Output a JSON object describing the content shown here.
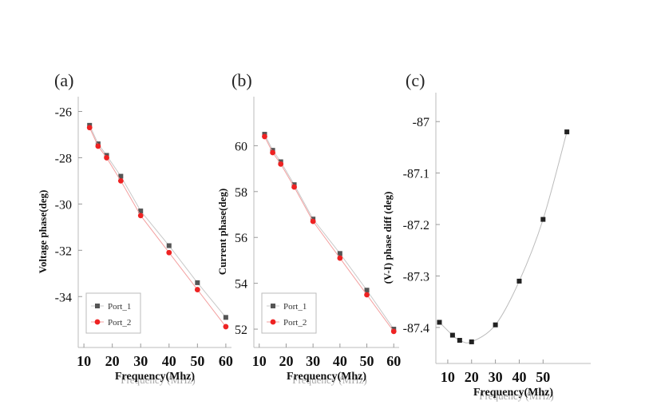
{
  "chart_data": [
    {
      "panel_label": "(a)",
      "type": "line",
      "ylabel": "Voltage phase(deg)",
      "xlabel": "Frequency(Mhz)",
      "xlabel_shadow": "Frequency (MHz)",
      "xlim": [
        8,
        62
      ],
      "ylim": [
        -36.2,
        -25.5
      ],
      "x_ticks": [
        10,
        20,
        30,
        40,
        50,
        60
      ],
      "y_ticks": [
        -26,
        -28,
        -30,
        -32,
        -34
      ],
      "legend_position": "bottom-left",
      "series": [
        {
          "name": "Port_1",
          "color": "#555555",
          "marker": "square",
          "x": [
            12,
            15,
            18,
            23,
            30,
            40,
            50,
            60
          ],
          "y": [
            -26.6,
            -27.4,
            -27.9,
            -28.8,
            -30.3,
            -31.8,
            -33.4,
            -34.9
          ]
        },
        {
          "name": "Port_2",
          "color": "#ee2222",
          "marker": "circle",
          "x": [
            12,
            15,
            18,
            23,
            30,
            40,
            50,
            60
          ],
          "y": [
            -26.7,
            -27.5,
            -28.0,
            -29.0,
            -30.5,
            -32.1,
            -33.7,
            -35.3
          ]
        }
      ]
    },
    {
      "panel_label": "(b)",
      "type": "line",
      "ylabel": "Current  phase(deg)",
      "xlabel": "Frequency(Mhz)",
      "xlabel_shadow": "Frequency (MHz)",
      "xlim": [
        8,
        62
      ],
      "ylim": [
        51.2,
        62.0
      ],
      "x_ticks": [
        10,
        20,
        30,
        40,
        50,
        60
      ],
      "y_ticks": [
        60,
        58,
        56,
        54,
        52
      ],
      "legend_position": "bottom-left",
      "series": [
        {
          "name": "Port_1",
          "color": "#555555",
          "marker": "square",
          "x": [
            12,
            15,
            18,
            23,
            30,
            40,
            50,
            60
          ],
          "y": [
            60.5,
            59.8,
            59.3,
            58.3,
            56.8,
            55.3,
            53.7,
            52.0
          ]
        },
        {
          "name": "Port_2",
          "color": "#ee2222",
          "marker": "circle",
          "x": [
            12,
            15,
            18,
            23,
            30,
            40,
            50,
            60
          ],
          "y": [
            60.4,
            59.7,
            59.2,
            58.2,
            56.7,
            55.1,
            53.5,
            51.9
          ]
        }
      ]
    },
    {
      "panel_label": "(c)",
      "type": "line",
      "ylabel": "(V-I) phase diff (deg)",
      "xlabel": "Frequency(Mhz)",
      "xlabel_shadow": "Frequency (MHz)",
      "xlim": [
        5,
        70
      ],
      "ylim": [
        -87.47,
        -86.95
      ],
      "x_ticks": [
        10,
        20,
        30,
        40,
        50
      ],
      "y_ticks": [
        -87,
        -87.1,
        -87.2,
        -87.3,
        -87.4
      ],
      "legend_position": "none",
      "series": [
        {
          "name": "",
          "color": "#222222",
          "line_color": "#bbbbbb",
          "marker": "square",
          "x": [
            6.5,
            12,
            15,
            20,
            30,
            40,
            50,
            60
          ],
          "y": [
            -87.39,
            -87.415,
            -87.425,
            -87.428,
            -87.395,
            -87.31,
            -87.19,
            -87.02
          ]
        }
      ]
    }
  ]
}
